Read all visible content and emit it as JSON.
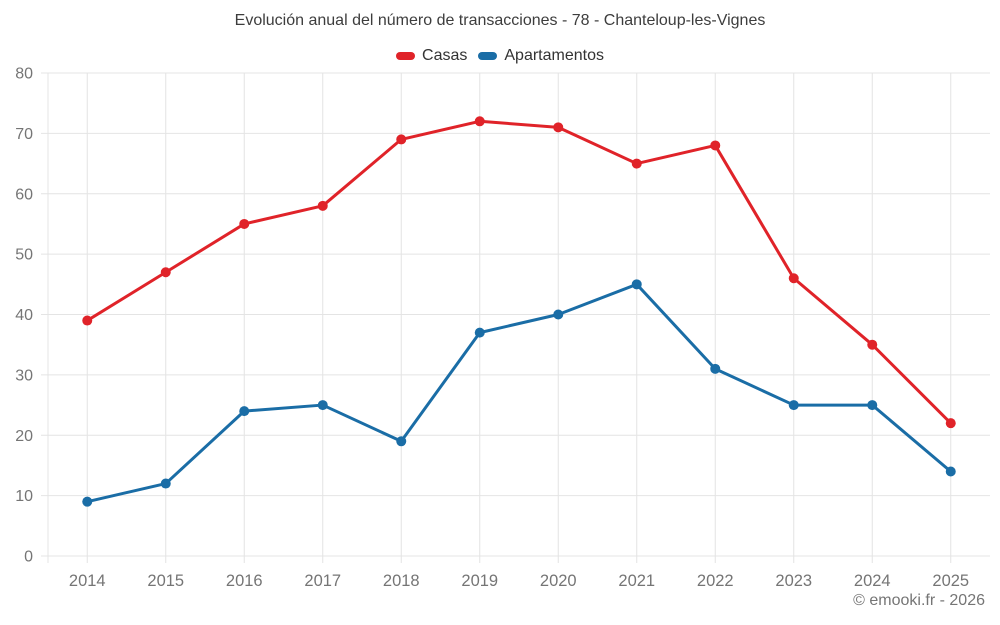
{
  "footer": {
    "credit": "© emooki.fr - 2026"
  },
  "chart_data": {
    "type": "line",
    "title": "Evolución anual del número de transacciones - 78 - Chanteloup-les-Vignes",
    "categories": [
      "2014",
      "2015",
      "2016",
      "2017",
      "2018",
      "2019",
      "2020",
      "2021",
      "2022",
      "2023",
      "2024",
      "2025"
    ],
    "series": [
      {
        "name": "Casas",
        "color": "#e02329",
        "values": [
          39,
          47,
          55,
          58,
          69,
          72,
          71,
          65,
          68,
          46,
          35,
          22
        ]
      },
      {
        "name": "Apartamentos",
        "color": "#1a6da6",
        "values": [
          9,
          12,
          24,
          25,
          19,
          37,
          40,
          45,
          31,
          25,
          25,
          14
        ]
      }
    ],
    "xlabel": "",
    "ylabel": "",
    "ylim": [
      0,
      80
    ],
    "yticks": [
      0,
      10,
      20,
      30,
      40,
      50,
      60,
      70,
      80
    ],
    "grid": true,
    "grid_color": "#e4e4e4",
    "axis_label_color": "#757575",
    "legend_position": "top",
    "marker_radius": 5,
    "line_width": 3
  }
}
